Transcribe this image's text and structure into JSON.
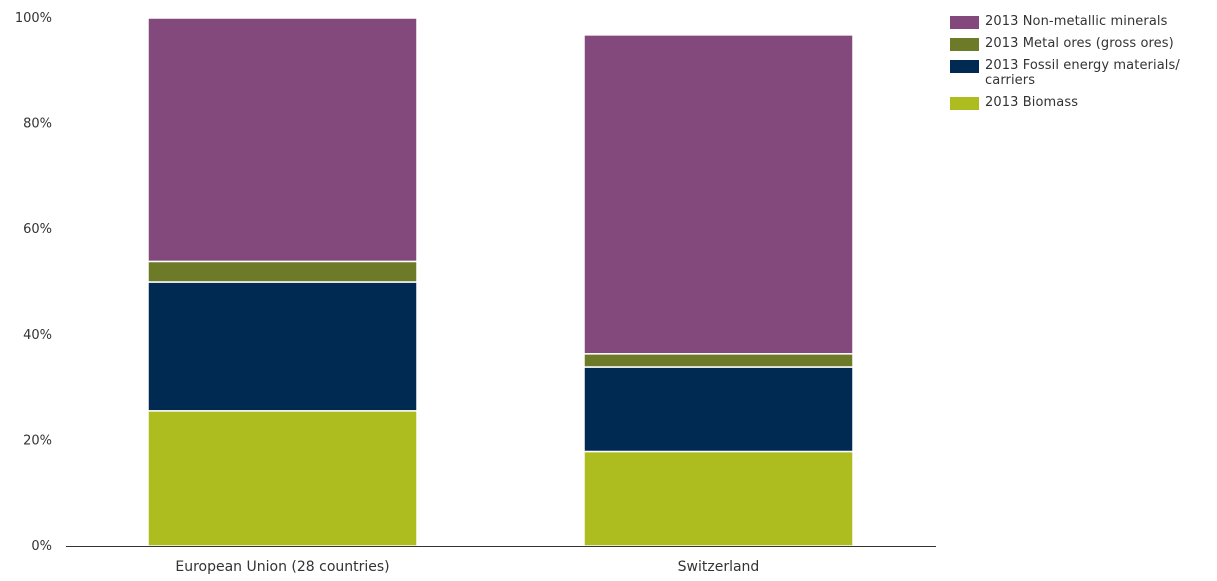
{
  "chart_data": {
    "type": "bar",
    "stacked": true,
    "categories": [
      "European Union (28 countries)",
      "Switzerland"
    ],
    "series": [
      {
        "name": "2013 Biomass",
        "color": "#adbd1f",
        "values": [
          25.6,
          17.9
        ]
      },
      {
        "name": "2013 Fossil energy materials/ carriers",
        "color": "#002a51",
        "values": [
          24.4,
          16.0
        ]
      },
      {
        "name": "2013 Metal ores (gross ores)",
        "color": "#6d7a27",
        "values": [
          3.9,
          2.5
        ]
      },
      {
        "name": "2013 Non-metallic minerals",
        "color": "#83497d",
        "values": [
          46.1,
          60.4
        ]
      }
    ],
    "legend_order": [
      "2013 Non-metallic minerals",
      "2013 Metal ores (gross ores)",
      "2013 Fossil energy materials/ carriers",
      "2013 Biomass"
    ],
    "ylim": [
      0,
      100
    ],
    "yticks": [
      "0%",
      "20%",
      "40%",
      "60%",
      "80%",
      "100%"
    ],
    "ytick_values": [
      0,
      20,
      40,
      60,
      80,
      100
    ],
    "title": "",
    "xlabel": "",
    "ylabel": "",
    "grid": false,
    "legend_position": "top-right"
  }
}
